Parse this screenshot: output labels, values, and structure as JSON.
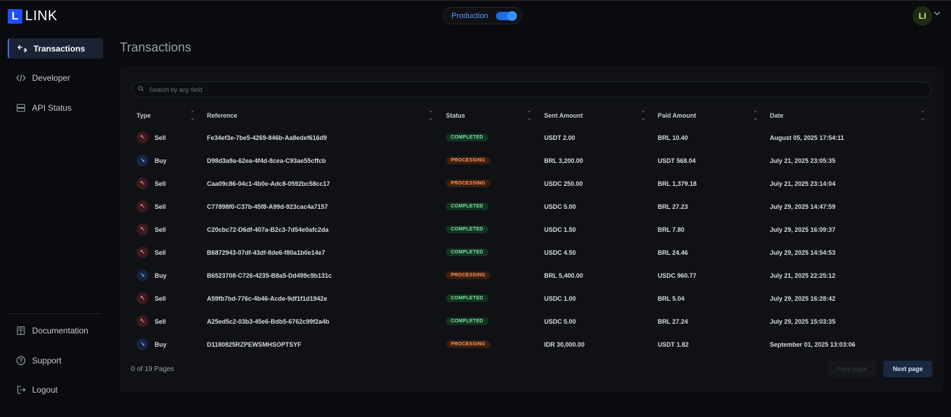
{
  "app": {
    "logo_letter": "L",
    "logo_text": "LINK"
  },
  "env": {
    "label": "Production",
    "enabled": true
  },
  "user": {
    "initials": "LI"
  },
  "sidebar": {
    "items": [
      {
        "label": "Transactions",
        "icon": "transactions-icon",
        "active": true
      },
      {
        "label": "Developer",
        "icon": "code-icon",
        "active": false
      },
      {
        "label": "API Status",
        "icon": "server-icon",
        "active": false
      }
    ],
    "bottom_items": [
      {
        "label": "Documentation",
        "icon": "book-icon"
      },
      {
        "label": "Support",
        "icon": "help-icon"
      },
      {
        "label": "Logout",
        "icon": "logout-icon"
      }
    ]
  },
  "page": {
    "title": "Transactions"
  },
  "search": {
    "placeholder": "Search by any field"
  },
  "table": {
    "columns": [
      "Type",
      "Reference",
      "Status",
      "Sent Amount",
      "Paid Amount",
      "Date"
    ],
    "rows": [
      {
        "type": "Sell",
        "reference": "Fe34ef3e-7be5-4269-846b-Aa8edef616d9",
        "status": "COMPLETED",
        "sent": "USDT 2.00",
        "paid": "BRL 10.40",
        "date": "August 05, 2025 17:54:11"
      },
      {
        "type": "Buy",
        "reference": "D98d3a9a-62ea-4f4d-8cea-C93ae55cffcb",
        "status": "PROCESSING",
        "sent": "BRL 3,200.00",
        "paid": "USDT 568.04",
        "date": "July 21, 2025 23:05:35"
      },
      {
        "type": "Sell",
        "reference": "Caa09c86-04c1-4b0e-Adc8-0592bc58cc17",
        "status": "PROCESSING",
        "sent": "USDC 250.00",
        "paid": "BRL 1,379.18",
        "date": "July 21, 2025 23:14:04"
      },
      {
        "type": "Sell",
        "reference": "C77898f0-C37b-45f8-A99d-923cac4a7157",
        "status": "COMPLETED",
        "sent": "USDC 5.00",
        "paid": "BRL 27.23",
        "date": "July 29, 2025 14:47:59"
      },
      {
        "type": "Sell",
        "reference": "C20cbc72-D6df-407a-B2c3-7d54e0afc2da",
        "status": "COMPLETED",
        "sent": "USDC 1.50",
        "paid": "BRL 7.80",
        "date": "July 29, 2025 16:09:37"
      },
      {
        "type": "Sell",
        "reference": "B6872943-07df-43df-8de6-f80a1b0e14e7",
        "status": "COMPLETED",
        "sent": "USDC 4.50",
        "paid": "BRL 24.46",
        "date": "July 29, 2025 14:54:53"
      },
      {
        "type": "Buy",
        "reference": "B6523708-C726-4235-B8a5-Dd499c9b131c",
        "status": "PROCESSING",
        "sent": "BRL 5,400.00",
        "paid": "USDC 960.77",
        "date": "July 21, 2025 22:25:12"
      },
      {
        "type": "Sell",
        "reference": "A59fb7bd-776c-4b46-Acde-9df1f1d1942e",
        "status": "COMPLETED",
        "sent": "USDC 1.00",
        "paid": "BRL 5.04",
        "date": "July 29, 2025 16:28:42"
      },
      {
        "type": "Sell",
        "reference": "A25ed5c2-03b3-45e6-Bdb5-6762c99f2a4b",
        "status": "COMPLETED",
        "sent": "USDC 5.00",
        "paid": "BRL 27.24",
        "date": "July 29, 2025 15:03:35"
      },
      {
        "type": "Buy",
        "reference": "D1180825RZPEWSMHSOPTSYF",
        "status": "PROCESSING",
        "sent": "IDR 30,000.00",
        "paid": "USDT 1.82",
        "date": "September 01, 2025 13:03:06"
      }
    ]
  },
  "pagination": {
    "info": "0 of 19 Pages",
    "prev_label": "Prev page",
    "next_label": "Next page"
  }
}
